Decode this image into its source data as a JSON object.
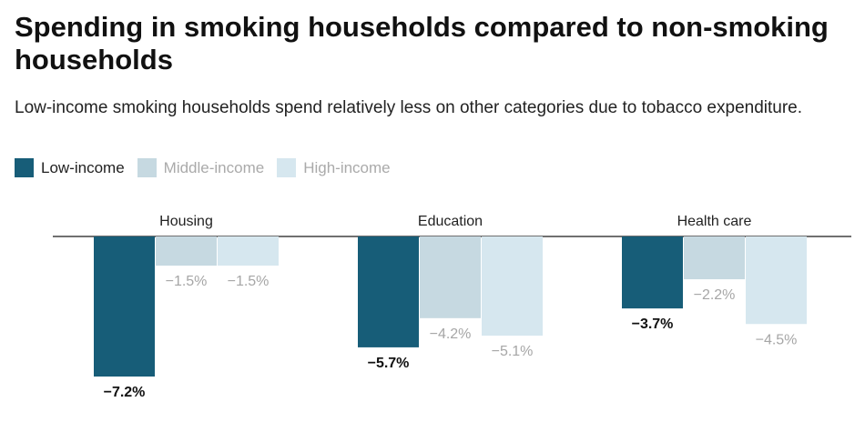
{
  "title": "Spending in smoking households compared to non-smoking households",
  "subtitle": "Low-income smoking households spend relatively less on other categories due to tobacco expenditure.",
  "legend": [
    {
      "label": "Low-income",
      "color": "#175d78",
      "text_color": "#222222"
    },
    {
      "label": "Middle-income",
      "color": "#c6d9e1",
      "text_color": "#aaaaaa"
    },
    {
      "label": "High-income",
      "color": "#d6e7ef",
      "text_color": "#aaaaaa"
    }
  ],
  "chart_data": {
    "type": "bar",
    "categories": [
      "Housing",
      "Education",
      "Health care"
    ],
    "series": [
      {
        "name": "Low-income",
        "values": [
          -7.2,
          -5.7,
          -3.7
        ],
        "labels": [
          "−7.2%",
          "−5.7%",
          "−3.7%"
        ],
        "color": "#175d78"
      },
      {
        "name": "Middle-income",
        "values": [
          -1.5,
          -4.2,
          -2.2
        ],
        "labels": [
          "−1.5%",
          "−4.2%",
          "−2.2%"
        ],
        "color": "#c6d9e1"
      },
      {
        "name": "High-income",
        "values": [
          -1.5,
          -5.1,
          -4.5
        ],
        "labels": [
          "−1.5%",
          "−5.1%",
          "−4.5%"
        ],
        "color": "#d6e7ef"
      }
    ],
    "ylim": [
      -7.2,
      0
    ],
    "label_colors": [
      "#111111",
      "#a6a6a6",
      "#a6a6a6"
    ],
    "grid": false,
    "legend_position": "top-left"
  }
}
